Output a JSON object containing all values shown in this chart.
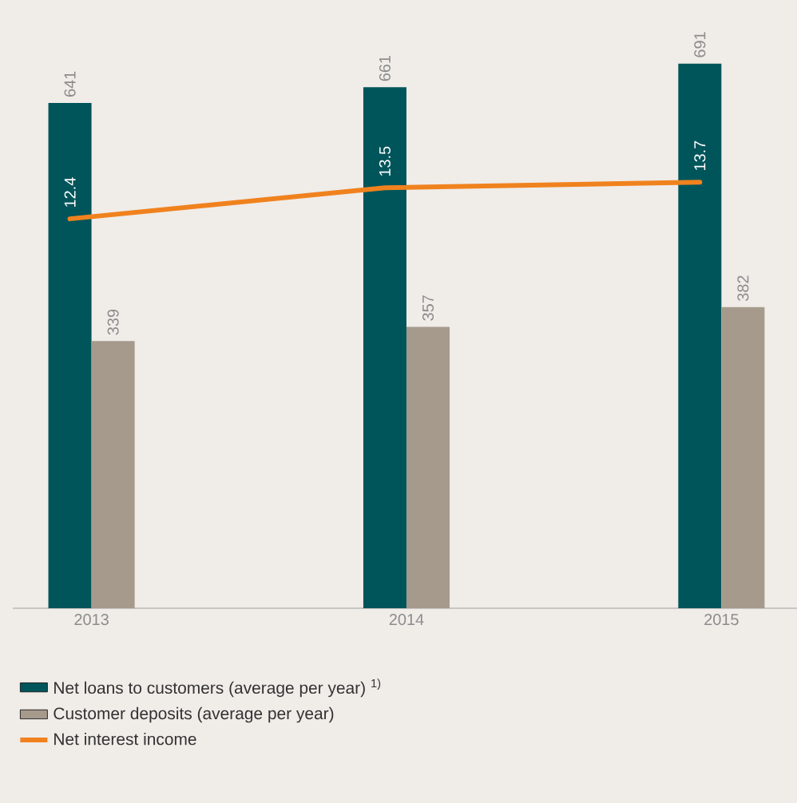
{
  "chart_data": {
    "type": "bar",
    "categories": [
      "2013",
      "2014",
      "2015"
    ],
    "series": [
      {
        "name": "Net loans to customers (average per year) $^{1)}$",
        "color": "#00555a",
        "values": [
          641,
          661,
          691
        ]
      },
      {
        "name": "Customer deposits (average per year)",
        "color": "#a59a8c",
        "values": [
          339,
          357,
          382
        ]
      },
      {
        "name": "Net interest income",
        "type": "line",
        "axis": "y2",
        "color": "#f0821e",
        "values": [
          12.4,
          13.5,
          13.7
        ]
      }
    ],
    "data_labels": true,
    "legend": "bottom",
    "marker": "none"
  }
}
